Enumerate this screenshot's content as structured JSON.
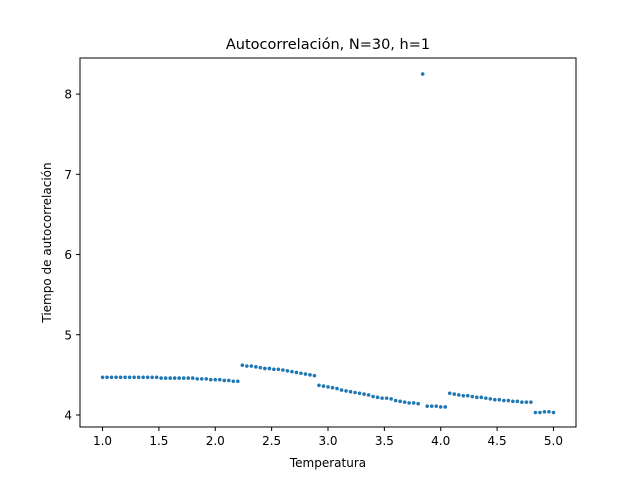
{
  "chart_data": {
    "type": "scatter",
    "title": "Autocorrelación, N=30, h=1",
    "xlabel": "Temperatura",
    "ylabel": "Tiempo de autocorrelación",
    "xlim": [
      0.8,
      5.2
    ],
    "ylim": [
      3.85,
      8.45
    ],
    "xticks": [
      1.0,
      1.5,
      2.0,
      2.5,
      3.0,
      3.5,
      4.0,
      4.5,
      5.0
    ],
    "xtick_labels": [
      "1.0",
      "1.5",
      "2.0",
      "2.5",
      "3.0",
      "3.5",
      "4.0",
      "4.5",
      "5.0"
    ],
    "yticks": [
      4,
      5,
      6,
      7,
      8
    ],
    "ytick_labels": [
      "4",
      "5",
      "6",
      "7",
      "8"
    ],
    "grid": false,
    "marker_color": "#1f77b4",
    "series": [
      {
        "x": [
          1.0,
          1.04,
          1.08,
          1.12,
          1.16,
          1.2,
          1.24,
          1.28,
          1.32,
          1.36,
          1.4,
          1.44,
          1.48,
          1.52,
          1.56,
          1.6,
          1.64,
          1.68,
          1.72,
          1.76,
          1.8,
          1.84,
          1.88,
          1.92,
          1.96,
          2.0,
          2.04,
          2.08,
          2.12,
          2.16,
          2.2,
          2.24,
          2.28,
          2.32,
          2.36,
          2.4,
          2.44,
          2.48,
          2.52,
          2.56,
          2.6,
          2.64,
          2.68,
          2.72,
          2.76,
          2.8,
          2.84,
          2.88,
          2.92,
          2.96,
          3.0,
          3.04,
          3.08,
          3.12,
          3.16,
          3.2,
          3.24,
          3.28,
          3.32,
          3.36,
          3.4,
          3.44,
          3.48,
          3.52,
          3.56,
          3.6,
          3.64,
          3.68,
          3.72,
          3.76,
          3.8,
          3.84,
          3.88,
          3.92,
          3.96,
          4.0,
          4.04,
          4.08,
          4.12,
          4.16,
          4.2,
          4.24,
          4.28,
          4.32,
          4.36,
          4.4,
          4.44,
          4.48,
          4.52,
          4.56,
          4.6,
          4.64,
          4.68,
          4.72,
          4.76,
          4.8,
          4.84,
          4.88,
          4.92,
          4.96,
          5.0
        ],
        "y": [
          4.47,
          4.47,
          4.47,
          4.47,
          4.47,
          4.47,
          4.47,
          4.47,
          4.47,
          4.47,
          4.47,
          4.47,
          4.47,
          4.46,
          4.46,
          4.46,
          4.46,
          4.46,
          4.46,
          4.46,
          4.46,
          4.45,
          4.45,
          4.45,
          4.44,
          4.44,
          4.44,
          4.43,
          4.43,
          4.42,
          4.42,
          4.62,
          4.61,
          4.61,
          4.6,
          4.59,
          4.58,
          4.58,
          4.57,
          4.57,
          4.56,
          4.55,
          4.54,
          4.53,
          4.52,
          4.51,
          4.5,
          4.49,
          4.37,
          4.36,
          4.35,
          4.34,
          4.33,
          4.31,
          4.3,
          4.29,
          4.28,
          4.27,
          4.26,
          4.25,
          4.23,
          4.22,
          4.21,
          4.21,
          4.2,
          4.18,
          4.17,
          4.16,
          4.15,
          4.15,
          4.14,
          8.25,
          4.11,
          4.11,
          4.11,
          4.1,
          4.1,
          4.27,
          4.26,
          4.25,
          4.24,
          4.24,
          4.23,
          4.22,
          4.22,
          4.21,
          4.2,
          4.19,
          4.19,
          4.18,
          4.18,
          4.17,
          4.17,
          4.16,
          4.16,
          4.16,
          4.03,
          4.03,
          4.04,
          4.04,
          4.03
        ]
      }
    ]
  }
}
